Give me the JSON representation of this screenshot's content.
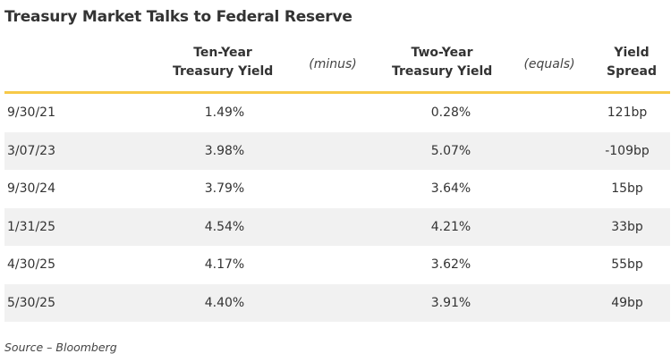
{
  "title": "Treasury Market Talks to Federal Reserve",
  "headers": {
    "ten_year": [
      "Ten-Year",
      "Treasury Yield"
    ],
    "minus": "(minus)",
    "two_year": [
      "Two-Year",
      "Treasury Yield"
    ],
    "equals": "(equals)",
    "spread": [
      "Yield",
      "Spread"
    ]
  },
  "rows": [
    {
      "date": "9/30/21",
      "ten_year": "1.49%",
      "two_year": "0.28%",
      "spread": "121bp"
    },
    {
      "date": "3/07/23",
      "ten_year": "3.98%",
      "two_year": "5.07%",
      "spread": "-109bp"
    },
    {
      "date": "9/30/24",
      "ten_year": "3.79%",
      "two_year": "3.64%",
      "spread": "15bp"
    },
    {
      "date": "1/31/25",
      "ten_year": "4.54%",
      "two_year": "4.21%",
      "spread": "33bp"
    },
    {
      "date": "4/30/25",
      "ten_year": "4.17%",
      "two_year": "3.62%",
      "spread": "55bp"
    },
    {
      "date": "5/30/25",
      "ten_year": "4.40%",
      "two_year": "3.91%",
      "spread": "49bp"
    }
  ],
  "source": "Source – Bloomberg",
  "colors": {
    "accent_rule": "#f7c948",
    "shaded_row": "#f1f1f1",
    "text": "#333333"
  }
}
